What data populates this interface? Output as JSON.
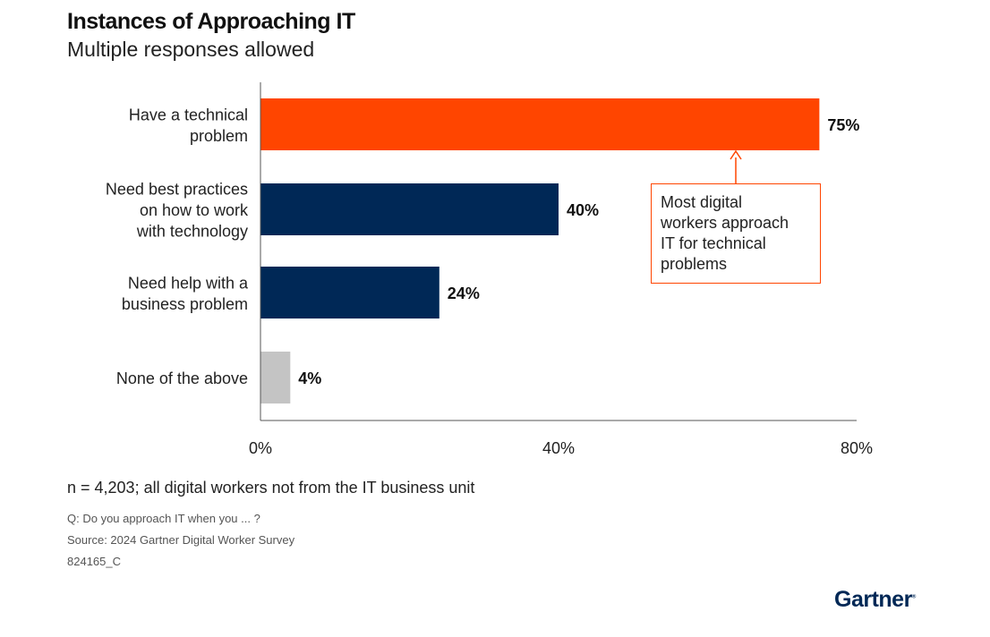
{
  "chart_data": {
    "type": "bar",
    "orientation": "horizontal",
    "title": "Instances of Approaching IT",
    "subtitle": "Multiple responses allowed",
    "categories": [
      [
        "Have a technical",
        "problem"
      ],
      [
        "Need best practices",
        "on how to work",
        "with technology"
      ],
      [
        "Need help with a",
        "business problem"
      ],
      [
        "None of the above"
      ]
    ],
    "values": [
      75,
      40,
      24,
      4
    ],
    "data_labels": [
      "75%",
      "40%",
      "24%",
      "4%"
    ],
    "colors": [
      "#ff4500",
      "#002856",
      "#002856",
      "#c4c4c4"
    ],
    "xlim": [
      0,
      80
    ],
    "xticks": [
      0,
      40,
      80
    ],
    "xtick_labels": [
      "0%",
      "40%",
      "80%"
    ],
    "grid": false,
    "annotation": {
      "text": [
        "Most digital",
        "workers approach",
        "IT for technical",
        "problems"
      ],
      "target_category": 0,
      "color": "#ff4500"
    }
  },
  "footer": {
    "note": "n = 4,203; all digital workers not from the IT business unit",
    "question": "Q: Do you approach IT when you ... ?",
    "source": "Source: 2024 Gartner Digital Worker Survey",
    "id": "824165_C"
  },
  "logo": "Gartner"
}
